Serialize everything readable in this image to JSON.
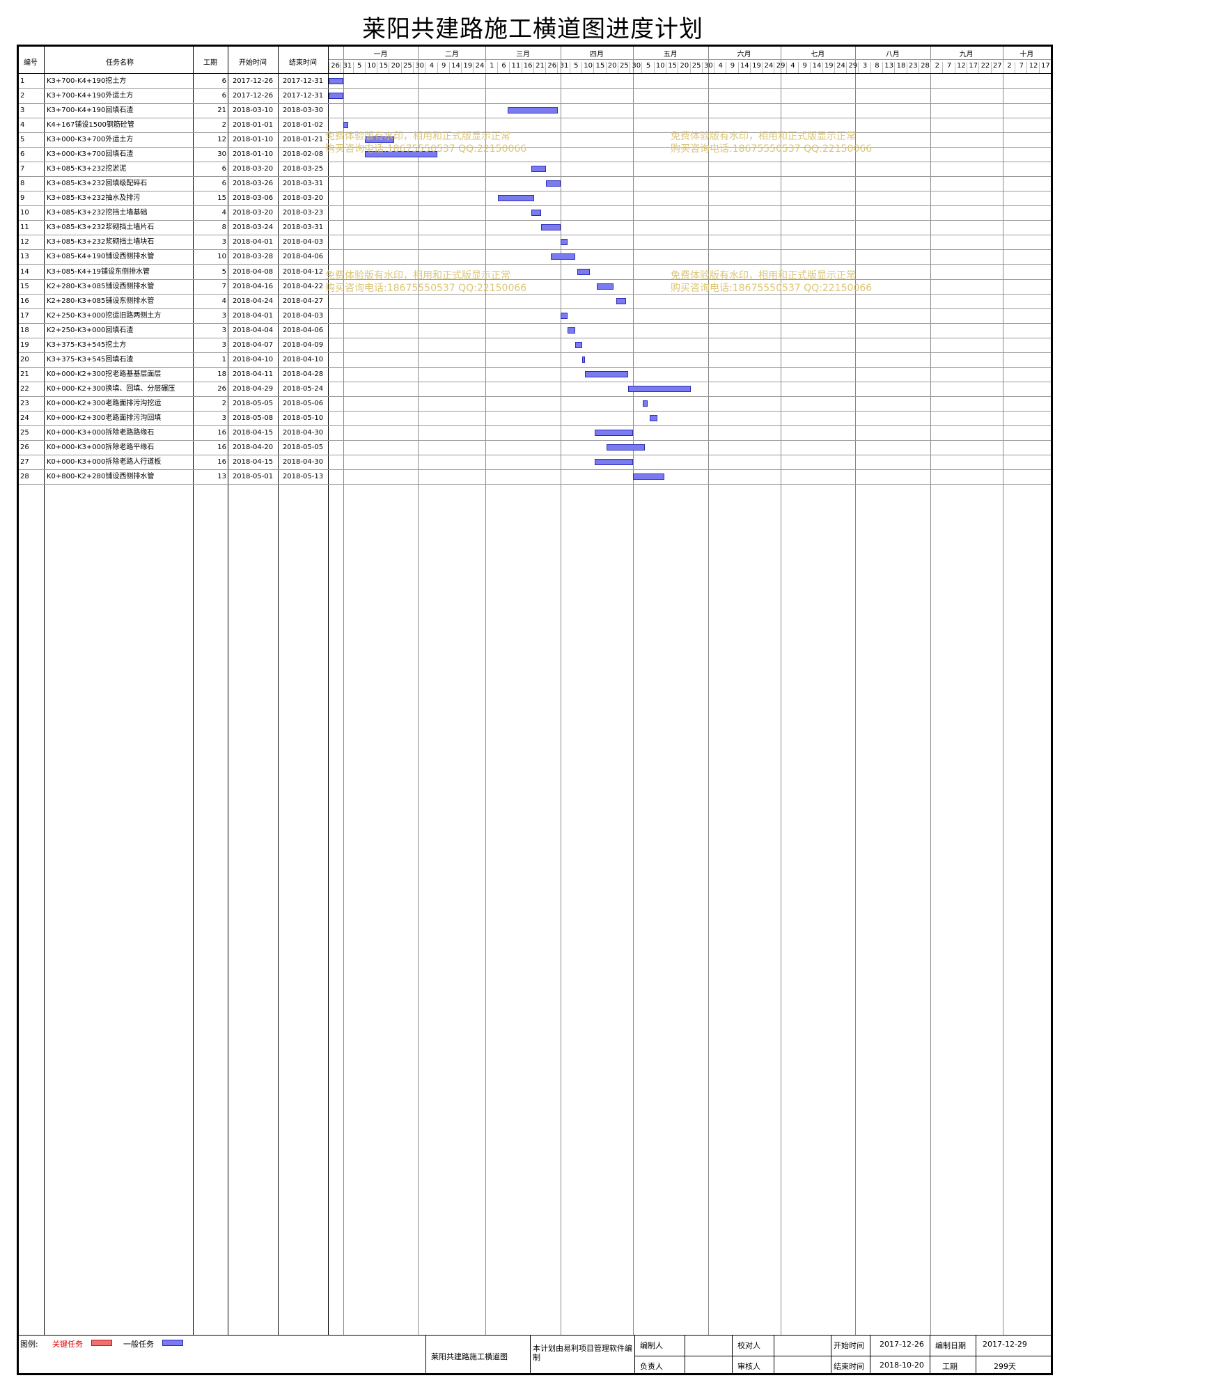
{
  "title": "莱阳共建路施工横道图进度计划",
  "headers": {
    "id": "编号",
    "name": "任务名称",
    "dur": "工期",
    "start": "开始时间",
    "end": "结束时间"
  },
  "months": [
    "一月",
    "二月",
    "三月",
    "四月",
    "五月",
    "六月",
    "七月",
    "八月",
    "九月",
    "十月"
  ],
  "day_ticks": [
    "26",
    "31",
    "5",
    "10",
    "15",
    "20",
    "25",
    "30",
    "4",
    "9",
    "14",
    "19",
    "24",
    "1",
    "6",
    "11",
    "16",
    "21",
    "26",
    "31",
    "5",
    "10",
    "15",
    "20",
    "25",
    "30",
    "5",
    "10",
    "15",
    "20",
    "25",
    "30",
    "4",
    "9",
    "14",
    "19",
    "24",
    "29",
    "4",
    "9",
    "14",
    "19",
    "24",
    "29",
    "3",
    "8",
    "13",
    "18",
    "23",
    "28",
    "2",
    "7",
    "12",
    "17",
    "22",
    "27",
    "2",
    "7",
    "12",
    "17"
  ],
  "chart_data": {
    "type": "gantt",
    "x_range": [
      "2017-12-26",
      "2018-10-20"
    ],
    "tasks": [
      {
        "id": "1",
        "name": "K3+700-K4+190挖土方",
        "dur": "6",
        "start": "2017-12-26",
        "end": "2017-12-31",
        "critical": false
      },
      {
        "id": "2",
        "name": "K3+700-K4+190外运土方",
        "dur": "6",
        "start": "2017-12-26",
        "end": "2017-12-31",
        "critical": false
      },
      {
        "id": "3",
        "name": "K3+700-K4+190回填石渣",
        "dur": "21",
        "start": "2018-03-10",
        "end": "2018-03-30",
        "critical": false
      },
      {
        "id": "4",
        "name": "K4+167铺设1500钢筋砼管",
        "dur": "2",
        "start": "2018-01-01",
        "end": "2018-01-02",
        "critical": false
      },
      {
        "id": "5",
        "name": "K3+000-K3+700外运土方",
        "dur": "12",
        "start": "2018-01-10",
        "end": "2018-01-21",
        "critical": false
      },
      {
        "id": "6",
        "name": "K3+000-K3+700回填石渣",
        "dur": "30",
        "start": "2018-01-10",
        "end": "2018-02-08",
        "critical": false
      },
      {
        "id": "7",
        "name": "K3+085-K3+232挖淤泥",
        "dur": "6",
        "start": "2018-03-20",
        "end": "2018-03-25",
        "critical": false
      },
      {
        "id": "8",
        "name": "K3+085-K3+232回填级配碎石",
        "dur": "6",
        "start": "2018-03-26",
        "end": "2018-03-31",
        "critical": false
      },
      {
        "id": "9",
        "name": "K3+085-K3+232抽水及排污",
        "dur": "15",
        "start": "2018-03-06",
        "end": "2018-03-20",
        "critical": false
      },
      {
        "id": "10",
        "name": "K3+085-K3+232挖挡土墙基础",
        "dur": "4",
        "start": "2018-03-20",
        "end": "2018-03-23",
        "critical": false
      },
      {
        "id": "11",
        "name": "K3+085-K3+232浆砌挡土墙片石",
        "dur": "8",
        "start": "2018-03-24",
        "end": "2018-03-31",
        "critical": false
      },
      {
        "id": "12",
        "name": "K3+085-K3+232浆砌挡土墙块石",
        "dur": "3",
        "start": "2018-04-01",
        "end": "2018-04-03",
        "critical": false
      },
      {
        "id": "13",
        "name": "K3+085-K4+190铺设西侧排水管",
        "dur": "10",
        "start": "2018-03-28",
        "end": "2018-04-06",
        "critical": false
      },
      {
        "id": "14",
        "name": "K3+085-K4+19铺设东侧排水管",
        "dur": "5",
        "start": "2018-04-08",
        "end": "2018-04-12",
        "critical": false
      },
      {
        "id": "15",
        "name": "K2+280-K3+085铺设西侧排水管",
        "dur": "7",
        "start": "2018-04-16",
        "end": "2018-04-22",
        "critical": false
      },
      {
        "id": "16",
        "name": "K2+280-K3+085铺设东侧排水管",
        "dur": "4",
        "start": "2018-04-24",
        "end": "2018-04-27",
        "critical": false
      },
      {
        "id": "17",
        "name": "K2+250-K3+000挖运旧路两侧土方",
        "dur": "3",
        "start": "2018-04-01",
        "end": "2018-04-03",
        "critical": false
      },
      {
        "id": "18",
        "name": "K2+250-K3+000回填石渣",
        "dur": "3",
        "start": "2018-04-04",
        "end": "2018-04-06",
        "critical": false
      },
      {
        "id": "19",
        "name": "K3+375-K3+545挖土方",
        "dur": "3",
        "start": "2018-04-07",
        "end": "2018-04-09",
        "critical": false
      },
      {
        "id": "20",
        "name": "K3+375-K3+545回填石渣",
        "dur": "1",
        "start": "2018-04-10",
        "end": "2018-04-10",
        "critical": false
      },
      {
        "id": "21",
        "name": "K0+000-K2+300挖老路基基层面层",
        "dur": "18",
        "start": "2018-04-11",
        "end": "2018-04-28",
        "critical": false
      },
      {
        "id": "22",
        "name": "K0+000-K2+300换填、回填、分层碾压",
        "dur": "26",
        "start": "2018-04-29",
        "end": "2018-05-24",
        "critical": false
      },
      {
        "id": "23",
        "name": "K0+000-K2+300老路面排污沟挖运",
        "dur": "2",
        "start": "2018-05-05",
        "end": "2018-05-06",
        "critical": false
      },
      {
        "id": "24",
        "name": "K0+000-K2+300老路面排污沟回填",
        "dur": "3",
        "start": "2018-05-08",
        "end": "2018-05-10",
        "critical": false
      },
      {
        "id": "25",
        "name": "K0+000-K3+000拆除老路路缘石",
        "dur": "16",
        "start": "2018-04-15",
        "end": "2018-04-30",
        "critical": false
      },
      {
        "id": "26",
        "name": "K0+000-K3+000拆除老路平缘石",
        "dur": "16",
        "start": "2018-04-20",
        "end": "2018-05-05",
        "critical": false
      },
      {
        "id": "27",
        "name": "K0+000-K3+000拆除老路人行道板",
        "dur": "16",
        "start": "2018-04-15",
        "end": "2018-04-30",
        "critical": false
      },
      {
        "id": "28",
        "name": "K0+800-K2+280铺设西侧排水管",
        "dur": "13",
        "start": "2018-05-01",
        "end": "2018-05-13",
        "critical": false
      }
    ]
  },
  "watermark": {
    "line1": "免费体验版有水印，相用和正式版显示正常",
    "line2": "购买咨询电话:18675550537 QQ:22150066"
  },
  "legend": {
    "label": "图例:",
    "critical": "关键任务",
    "normal": "一般任务"
  },
  "footer": {
    "plan_name": "莱阳共建路施工横道图",
    "software": "本计划由易利项目管理软件编制",
    "maker_label": "编制人",
    "checker_label": "校对人",
    "owner_label": "负责人",
    "auditor_label": "审核人",
    "start_label": "开始时间",
    "start_value": "2017-12-26",
    "end_label": "结束时间",
    "end_value": "2018-10-20",
    "date_label": "编制日期",
    "date_value": "2017-12-29",
    "dur_label": "工期",
    "dur_value": "299天"
  },
  "colors": {
    "normal": "#7b7bf0",
    "critical": "#f07070",
    "critical_text": "#e00000"
  }
}
